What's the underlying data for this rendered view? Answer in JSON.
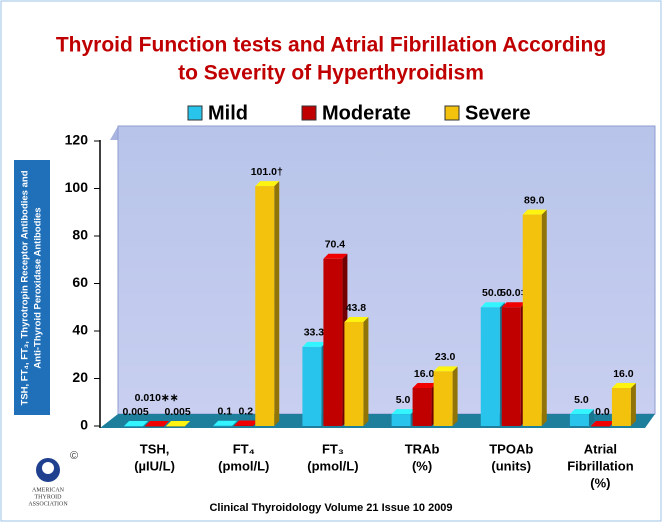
{
  "chart_data": {
    "type": "bar",
    "title": [
      "Thyroid Function tests and Atrial Fibrillation According",
      "to Severity of Hyperthyroidism"
    ],
    "y_label": [
      "TSH, FT₄, FT₃, Thyrotropin Receptor Antibodies and",
      "Anti-Thyroid  Peroxidase Antibodies"
    ],
    "categories": [
      [
        "TSH,",
        "(µIU/L)"
      ],
      [
        "FT₄",
        "(pmol/L)"
      ],
      [
        "FT₃",
        "(pmol/L)"
      ],
      [
        "TRAb",
        "(%)"
      ],
      [
        "TPOAb",
        "(units)"
      ],
      [
        "Atrial",
        "Fibrillation",
        "(%)"
      ]
    ],
    "series": [
      {
        "name": "Mild",
        "color": "#29c4ec",
        "values": [
          0.005,
          0.1,
          33.3,
          5.0,
          50.0,
          5.0
        ],
        "value_labels": [
          "0.005",
          "0.1",
          "33.3",
          "5.0",
          "50.0",
          "5.0"
        ]
      },
      {
        "name": "Moderate",
        "color": "#c00000",
        "values": [
          0.01,
          0.2,
          70.4,
          16.0,
          50.0,
          0.0
        ],
        "value_labels": [
          "0.010∗∗",
          "0.2",
          "70.4",
          "16.0",
          "50.0‡",
          "0.0"
        ]
      },
      {
        "name": "Severe",
        "color": "#f2c20d",
        "values": [
          0.005,
          101.0,
          43.8,
          23.0,
          89.0,
          16.0
        ],
        "value_labels": [
          "0.005",
          "101.0†",
          "43.8",
          "23.0",
          "89.0",
          "16.0"
        ]
      }
    ],
    "ylim": [
      0,
      120
    ],
    "yticks": [
      0,
      20,
      40,
      60,
      80,
      100,
      120
    ],
    "grid": false,
    "footer": "Clinical Thyroidology Volume 21 Issue 10 2009",
    "logo": {
      "symbol": "©",
      "lines": [
        "AMERICAN",
        "THYROID",
        "ASSOCIATION"
      ]
    }
  }
}
